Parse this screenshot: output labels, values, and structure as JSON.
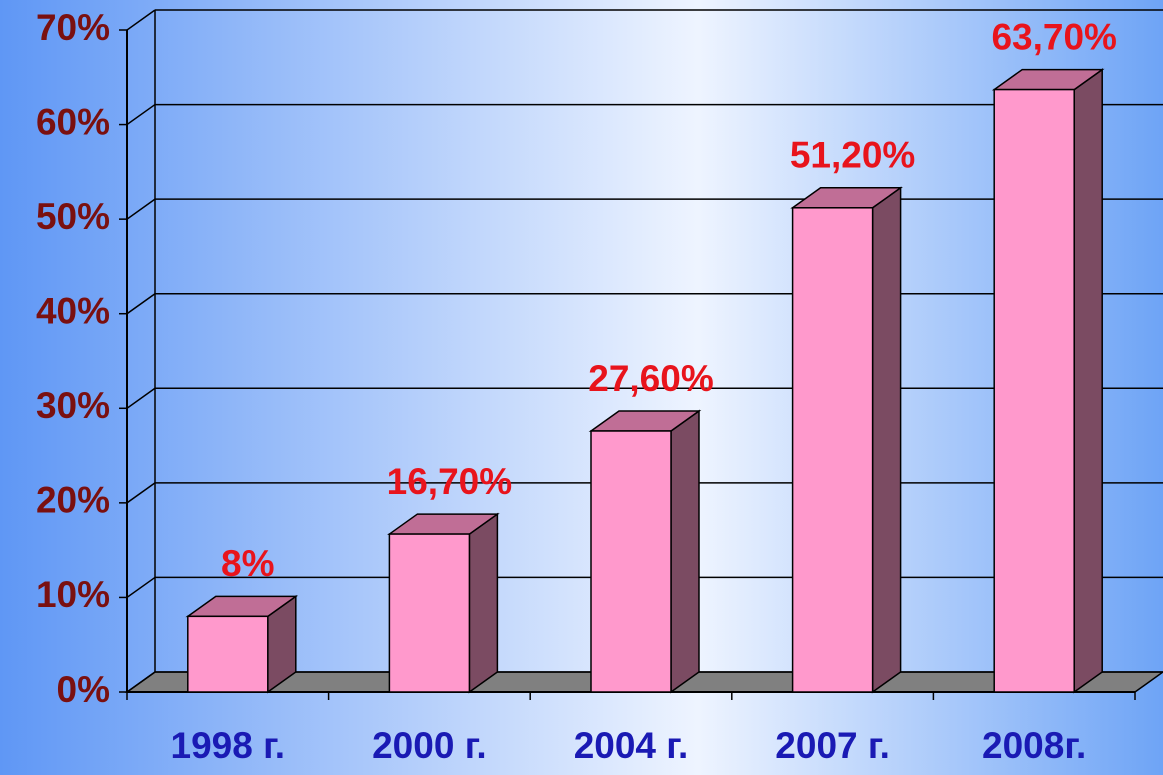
{
  "chart_data": {
    "type": "bar3d",
    "categories": [
      "1998 г.",
      "2000 г.",
      "2004 г.",
      "2007 г.",
      "2008г."
    ],
    "values": [
      8,
      16.7,
      27.6,
      51.2,
      63.7
    ],
    "value_labels": [
      "8%",
      "16,70%",
      "27,60%",
      "51,20%",
      "63,70%"
    ],
    "color": "#ff99cc",
    "ylim": [
      0,
      70
    ],
    "yticks": [
      {
        "value": 0,
        "label": "0%"
      },
      {
        "value": 10,
        "label": "10%"
      },
      {
        "value": 20,
        "label": "20%"
      },
      {
        "value": 30,
        "label": "30%"
      },
      {
        "value": 40,
        "label": "40%"
      },
      {
        "value": 50,
        "label": "50%"
      },
      {
        "value": 60,
        "label": "60%"
      },
      {
        "value": 70,
        "label": "70%"
      }
    ],
    "grid": true
  }
}
